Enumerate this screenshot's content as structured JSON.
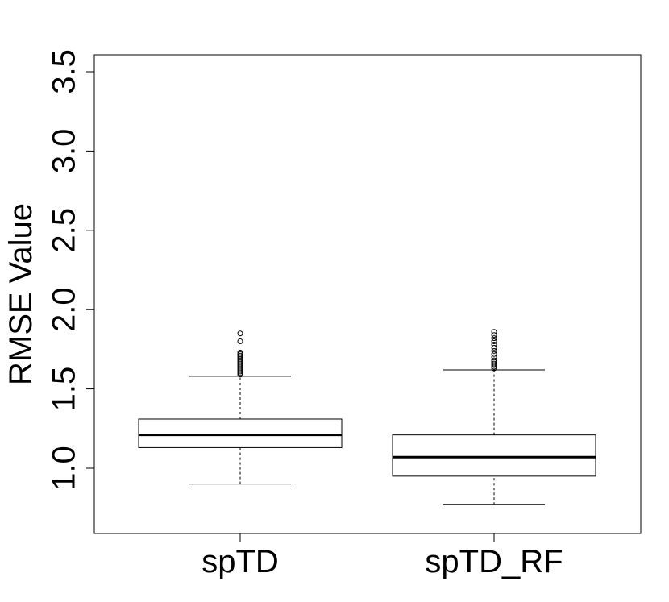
{
  "chart_data": {
    "type": "box",
    "title": "",
    "xlabel": "",
    "ylabel": "RMSE  Value",
    "ylim": [
      0.6,
      3.6
    ],
    "yticks": [
      "1.0",
      "1.5",
      "2.0",
      "2.5",
      "3.0",
      "3.5"
    ],
    "categories": [
      "spTD",
      "spTD_RF"
    ],
    "boxes": [
      {
        "name": "spTD",
        "whisker_low": 0.9,
        "q1": 1.13,
        "median": 1.21,
        "q3": 1.31,
        "whisker_high": 1.58,
        "outliers": [
          1.59,
          1.6,
          1.61,
          1.62,
          1.63,
          1.64,
          1.65,
          1.66,
          1.67,
          1.68,
          1.69,
          1.7,
          1.71,
          1.72,
          1.73,
          1.8,
          1.85
        ]
      },
      {
        "name": "spTD_RF",
        "whisker_low": 0.77,
        "q1": 0.95,
        "median": 1.07,
        "q3": 1.21,
        "whisker_high": 1.62,
        "outliers": [
          1.63,
          1.64,
          1.65,
          1.66,
          1.67,
          1.68,
          1.7,
          1.72,
          1.74,
          1.76,
          1.78,
          1.8,
          1.82,
          1.84,
          1.86
        ]
      }
    ],
    "grid": false,
    "legend": "none"
  }
}
